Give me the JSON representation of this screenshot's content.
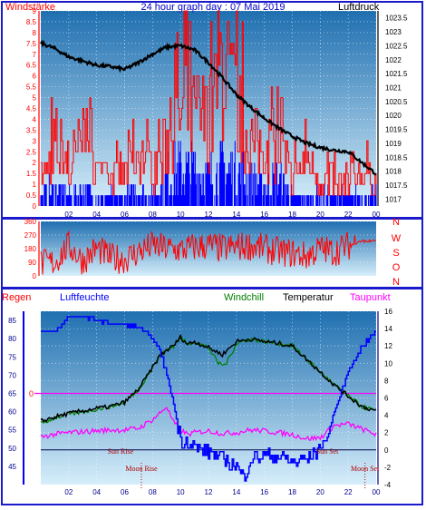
{
  "colors": {
    "frame": "#1a1acc",
    "plot_top": "#1f6fb0",
    "plot_bottom": "#d6eefa",
    "gust": "#ff0000",
    "mean_wind": "#0000ff",
    "pressure": "#000000",
    "direction": "#ff0000",
    "humidity": "#0000ff",
    "temperature": "#000000",
    "windchill": "#008000",
    "dewpoint": "#ff00ff",
    "rain_axis": "#0000ff",
    "temp_axis": "#00008b",
    "title": "#0000cc",
    "rain_label": "#ff0000",
    "zero_line": "#ff00ff",
    "ref_line": "#00004b",
    "sun_label": "#b00000"
  },
  "chart_data": [
    {
      "id": "wind_pressure",
      "type": "line",
      "title": "24 hour graph day : 07 Mai 2019",
      "left_label": "Windstärke",
      "right_label": "Luftdruck",
      "x_ticks": [
        "02",
        "04",
        "06",
        "08",
        "10",
        "12",
        "14",
        "16",
        "18",
        "20",
        "22",
        "00"
      ],
      "xlim": [
        0,
        24
      ],
      "left_ticks": [
        "0",
        "0.5",
        "1",
        "1.5",
        "2",
        "2.5",
        "3",
        "3.5",
        "4",
        "4.5",
        "5",
        "5.5",
        "6",
        "6.5",
        "7",
        "7.5",
        "8",
        "8.5",
        "9"
      ],
      "ylim_left": [
        0,
        9
      ],
      "right_ticks": [
        "1017",
        "1017.5",
        "1018",
        "1018.5",
        "1019",
        "1019.5",
        "1020",
        "1020.5",
        "1021",
        "1021.5",
        "1022",
        "1022.5",
        "1023",
        "1023.5"
      ],
      "ylim_right": [
        1016.75,
        1023.75
      ],
      "series": [
        {
          "key": "pressure",
          "x": [
            0,
            1,
            2,
            3,
            4,
            5,
            6,
            7,
            8,
            9,
            10,
            11,
            12,
            13,
            14,
            15,
            16,
            17,
            18,
            19,
            20,
            21,
            22,
            23,
            24
          ],
          "values": [
            1022.6,
            1022.4,
            1022.1,
            1021.95,
            1021.8,
            1021.75,
            1021.65,
            1021.9,
            1022.2,
            1022.45,
            1022.5,
            1022.35,
            1021.9,
            1021.35,
            1020.75,
            1020.3,
            1019.9,
            1019.55,
            1019.25,
            1019.0,
            1018.85,
            1018.75,
            1018.7,
            1018.3,
            1017.9
          ]
        },
        {
          "key": "gust",
          "x": [
            0,
            1,
            2,
            3,
            4,
            5,
            6,
            7,
            8,
            9,
            10,
            11,
            12,
            13,
            14,
            15,
            16,
            17,
            18,
            19,
            20,
            21,
            22,
            23,
            24
          ],
          "values": [
            1.5,
            3.5,
            2.0,
            4.0,
            2.0,
            1.5,
            2.0,
            3.5,
            2.0,
            4.0,
            5.5,
            5.5,
            5.0,
            9.0,
            6.0,
            4.0,
            3.5,
            3.5,
            1.5,
            3.0,
            1.5,
            1.5,
            1.5,
            2.0,
            1.5
          ]
        },
        {
          "key": "mean_wind",
          "x": [
            0,
            1,
            2,
            3,
            4,
            5,
            6,
            7,
            8,
            9,
            10,
            11,
            12,
            13,
            14,
            15,
            16,
            17,
            18,
            19,
            20,
            21,
            22,
            23,
            24
          ],
          "values": [
            0.5,
            1.0,
            0.5,
            1.0,
            0.5,
            0.5,
            0.5,
            1.0,
            0.5,
            1.5,
            2.0,
            2.0,
            1.5,
            2.0,
            2.0,
            1.5,
            1.0,
            1.5,
            0.5,
            0.5,
            0.5,
            0.5,
            0.5,
            0.5,
            0.5
          ]
        }
      ]
    },
    {
      "id": "wind_direction",
      "type": "line",
      "left_ticks": [
        "0",
        "90",
        "180",
        "270",
        "360"
      ],
      "ylim": [
        0,
        360
      ],
      "right_labels": [
        "N",
        "W",
        "S",
        "O",
        "N"
      ],
      "series": [
        {
          "key": "direction",
          "x": [
            0,
            1,
            2,
            3,
            4,
            5,
            6,
            7,
            8,
            9,
            10,
            11,
            12,
            13,
            14,
            15,
            16,
            17,
            18,
            19,
            20,
            21,
            22,
            23,
            24
          ],
          "values": [
            80,
            90,
            200,
            100,
            180,
            120,
            110,
            160,
            200,
            180,
            170,
            190,
            200,
            180,
            190,
            200,
            180,
            160,
            150,
            130,
            180,
            160,
            200,
            230,
            230
          ]
        }
      ]
    },
    {
      "id": "temp_humidity",
      "type": "line",
      "labels": {
        "rain": "Regen",
        "humidity": "Luftfeuchte",
        "windchill": "Windchill",
        "temperature": "Temperatur",
        "dewpoint": "Taupunkt",
        "rain_zero": "0"
      },
      "left_ticks": [
        "45",
        "50",
        "55",
        "60",
        "65",
        "70",
        "75",
        "80",
        "85"
      ],
      "ylim_left": [
        40,
        87.5
      ],
      "right_ticks": [
        "-4",
        "-2",
        "0",
        "2",
        "4",
        "6",
        "8",
        "10",
        "12",
        "14",
        "16"
      ],
      "ylim_right": [
        -4,
        16
      ],
      "x_ticks": [
        "02",
        "04",
        "06",
        "08",
        "10",
        "12",
        "14",
        "16",
        "18",
        "20",
        "22",
        "00"
      ],
      "events": [
        {
          "label": "Sun Rise",
          "x": 5.7,
          "row": "upper"
        },
        {
          "label": "Moon Rise",
          "x": 7.2,
          "row": "lower",
          "marker": true
        },
        {
          "label": "Sun Set",
          "x": 20.5,
          "row": "upper"
        },
        {
          "label": "Moon Set",
          "x": 23.2,
          "row": "lower",
          "marker": true
        }
      ],
      "series": [
        {
          "key": "humidity",
          "x": [
            0,
            1,
            2,
            3,
            4,
            5,
            6,
            7,
            8,
            8.5,
            9,
            9.5,
            10,
            10.5,
            11,
            12,
            13,
            14,
            14.5,
            15,
            16,
            17,
            18,
            19,
            20,
            20.5,
            21,
            22,
            23,
            24
          ],
          "values": [
            82,
            82,
            86,
            86,
            85,
            84,
            84,
            83,
            80,
            77,
            70,
            62,
            52,
            52,
            50,
            49,
            47,
            45,
            42,
            47,
            48,
            48,
            46,
            47,
            50,
            53,
            60,
            71,
            78,
            82
          ]
        },
        {
          "key": "temperature",
          "x": [
            0,
            1,
            2,
            3,
            4,
            5,
            6,
            7,
            8,
            8.5,
            9,
            9.5,
            10,
            10.5,
            11,
            12,
            13,
            14,
            15,
            16,
            17,
            18,
            19,
            20,
            21,
            22,
            23,
            24
          ],
          "values": [
            3.3,
            3.8,
            4.2,
            4.5,
            4.8,
            5.0,
            5.5,
            7.0,
            9.5,
            10.8,
            11.5,
            12.0,
            13.0,
            12.2,
            12.5,
            11.8,
            11.0,
            12.5,
            12.8,
            12.5,
            12.3,
            12.0,
            10.5,
            9.0,
            7.5,
            6.2,
            5.0,
            4.5
          ]
        },
        {
          "key": "windchill",
          "x": [
            0,
            1,
            2,
            3,
            4,
            5,
            6,
            7,
            8,
            8.5,
            9,
            9.5,
            10,
            10.5,
            11,
            12,
            12.7,
            13.2,
            13.6,
            14,
            15,
            16,
            17,
            18,
            19,
            20,
            21,
            22,
            23,
            24
          ],
          "values": [
            3.0,
            3.7,
            4.1,
            4.4,
            4.7,
            5.0,
            5.5,
            7.0,
            9.5,
            10.8,
            11.5,
            12.0,
            13.0,
            12.2,
            12.5,
            11.8,
            10.0,
            9.8,
            11.0,
            12.3,
            12.8,
            12.5,
            12.3,
            12.0,
            10.5,
            9.0,
            7.5,
            6.2,
            5.0,
            4.5
          ]
        },
        {
          "key": "dewpoint",
          "x": [
            0,
            1,
            2,
            3,
            4,
            5,
            6,
            7,
            8,
            8.5,
            9,
            9.5,
            10,
            10.5,
            11,
            12,
            13,
            14,
            15,
            16,
            17,
            18,
            19,
            20,
            21,
            22,
            23,
            24
          ],
          "values": [
            1.5,
            1.8,
            2.0,
            2.1,
            2.2,
            2.3,
            2.3,
            2.5,
            3.5,
            4.2,
            5.0,
            3.2,
            2.3,
            1.8,
            2.0,
            2.2,
            1.9,
            2.0,
            2.3,
            2.2,
            2.0,
            1.8,
            1.3,
            1.4,
            2.8,
            3.0,
            2.4,
            1.8
          ]
        }
      ]
    }
  ]
}
